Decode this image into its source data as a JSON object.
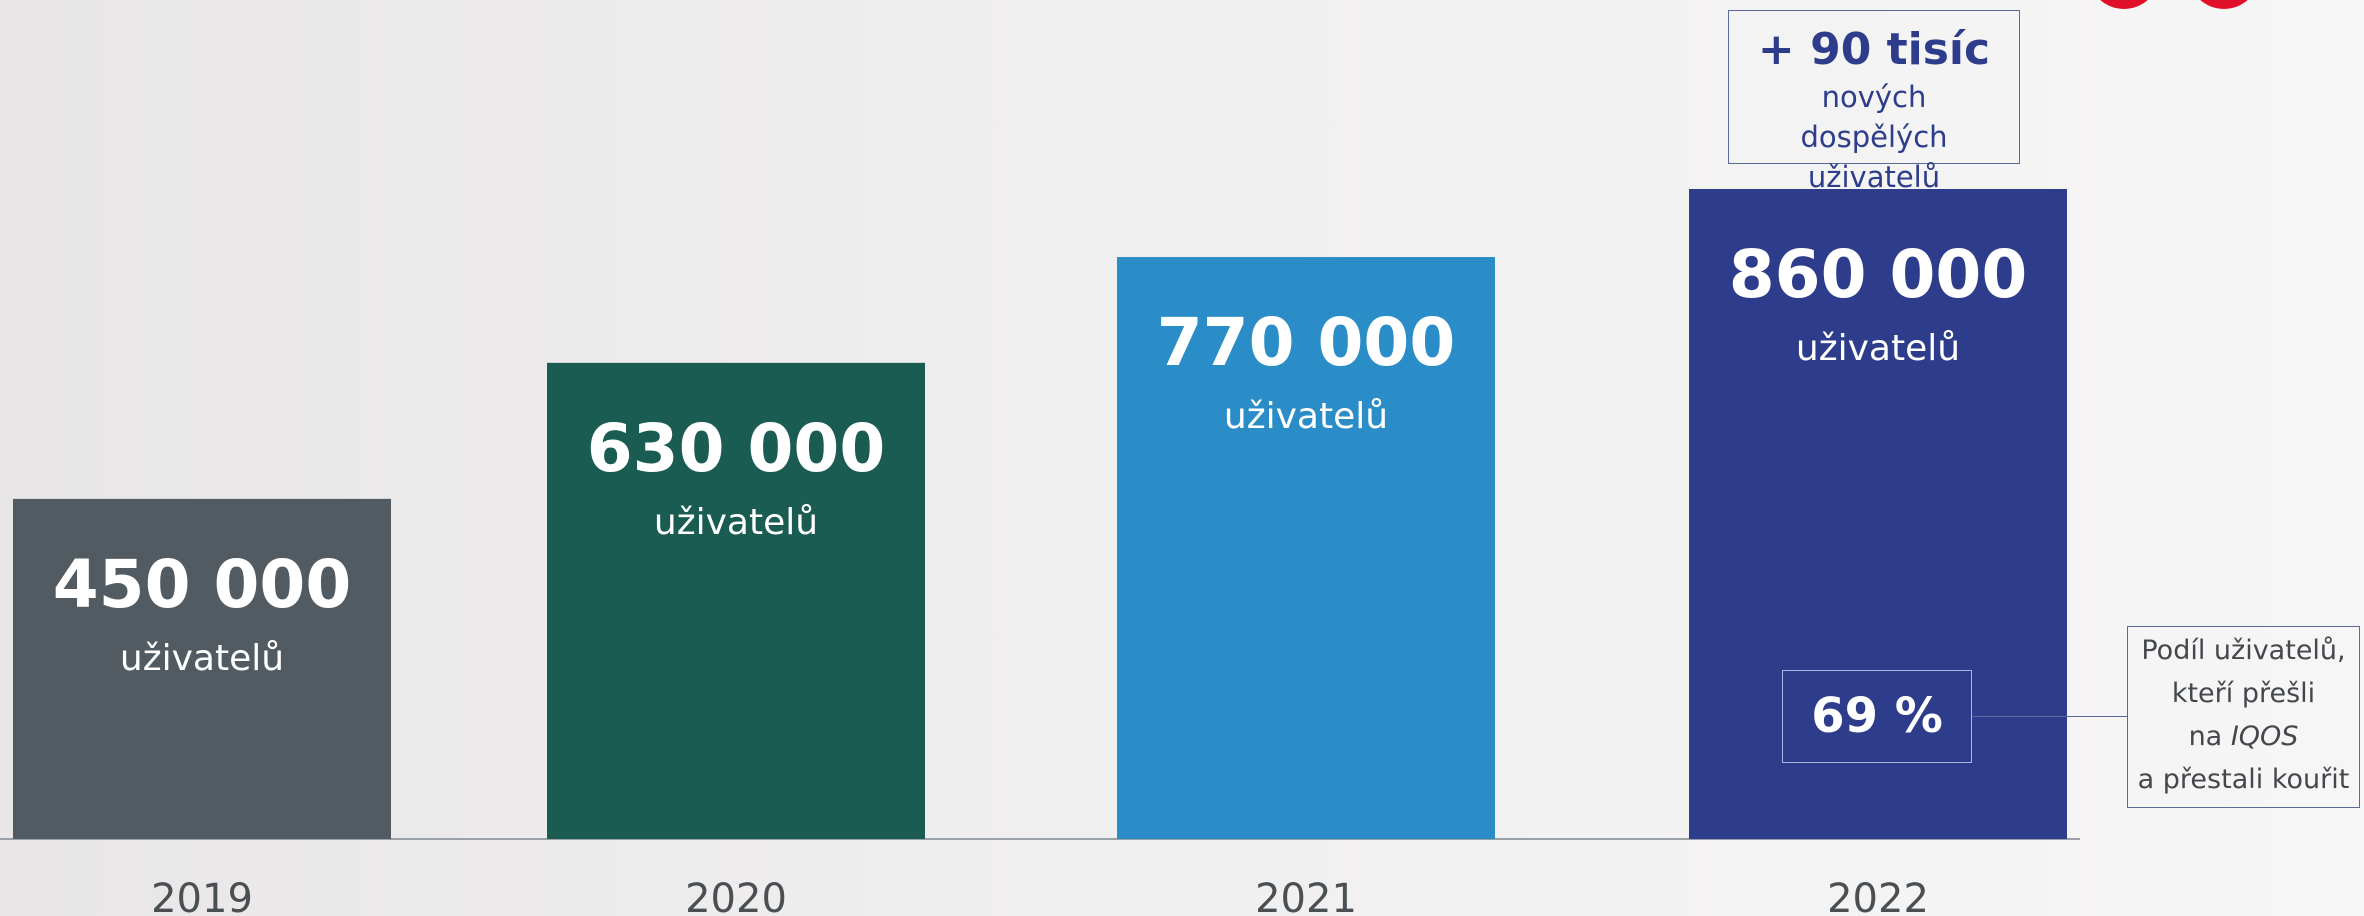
{
  "colors": {
    "bar_2019": "#525b61",
    "bar_2020": "#1a5c52",
    "bar_2021": "#2a8dc8",
    "bar_2022": "#2e3d8b",
    "axis": "#9aa2a8",
    "logo": "#e0102a"
  },
  "chart_data": {
    "type": "bar",
    "categories": [
      "2019",
      "2020",
      "2021",
      "2022"
    ],
    "values": [
      450000,
      630000,
      770000,
      860000
    ],
    "value_labels": [
      "450 000",
      "630 000",
      "770 000",
      "860 000"
    ],
    "unit_label": "uživatelů",
    "ylim": [
      0,
      860000
    ],
    "grid": false,
    "legend": "none"
  },
  "callout": {
    "headline": "+ 90 tisíc",
    "line1": "nových dospělých",
    "line2": "uživatelů"
  },
  "share": {
    "value": "69 %",
    "note_line1": "Podíl uživatelů,",
    "note_line2": "kteří přešli",
    "note_line3_prefix": "na ",
    "note_line3_brand": "IQOS",
    "note_line4": "a přestali kouřit"
  }
}
